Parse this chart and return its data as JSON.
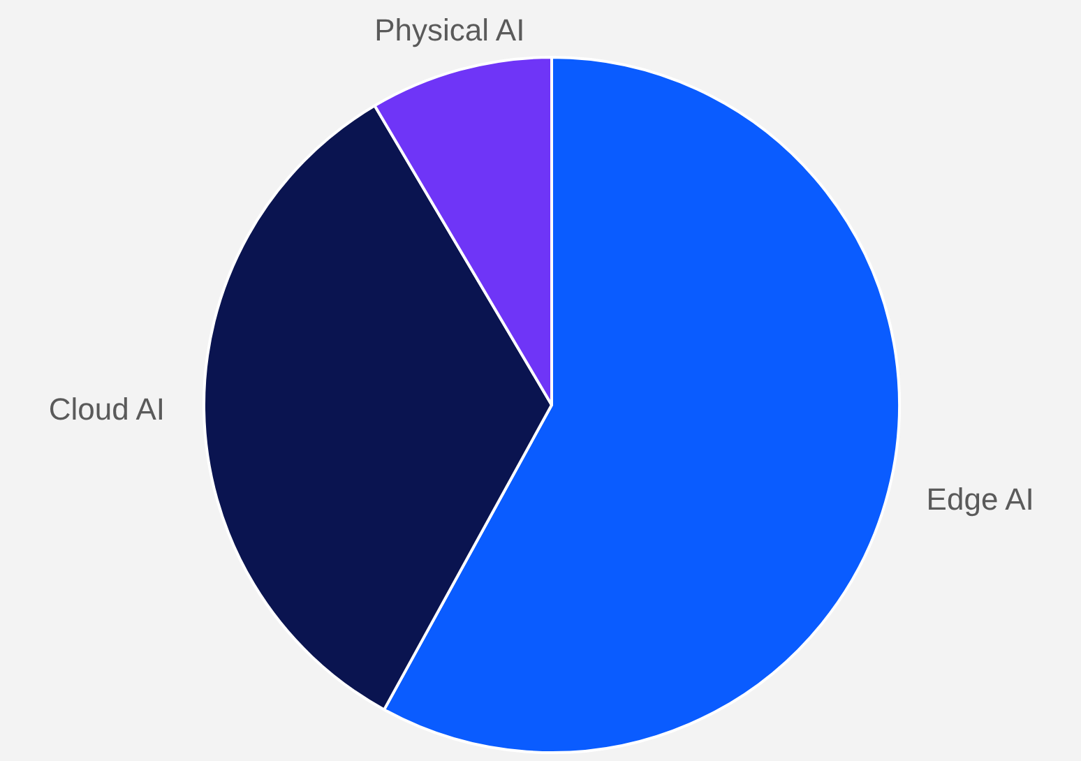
{
  "chart_data": {
    "type": "pie",
    "categories": [
      "Edge AI",
      "Cloud AI",
      "Physical AI"
    ],
    "values": [
      58,
      33.5,
      8.5
    ],
    "colors": [
      "#0a5cff",
      "#0a1450",
      "#6f35f7"
    ],
    "legend": false
  }
}
